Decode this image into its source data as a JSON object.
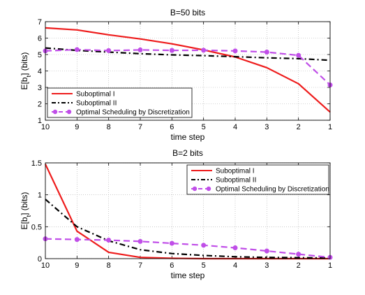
{
  "chart_data": [
    {
      "type": "line",
      "title": "B=50 bits",
      "xlabel": "time step",
      "ylabel": "E[b",
      "ylabel_sub": "t",
      "ylabel_unit": "] (bits)",
      "x": [
        10,
        9,
        8,
        7,
        6,
        5,
        4,
        3,
        2,
        1
      ],
      "x_reversed": true,
      "xlim": [
        1,
        10
      ],
      "ylim": [
        1,
        7
      ],
      "xticks": [
        "10",
        "9",
        "8",
        "7",
        "6",
        "5",
        "4",
        "3",
        "2",
        "1"
      ],
      "yticks": [
        "1",
        "2",
        "3",
        "4",
        "5",
        "6",
        "7"
      ],
      "grid": true,
      "legend_position": "bottom-left",
      "series": [
        {
          "name": "Suboptimal I",
          "color": "#ee1c1c",
          "style": "solid",
          "marker": "none",
          "values": [
            6.62,
            6.5,
            6.2,
            5.95,
            5.65,
            5.28,
            4.85,
            4.2,
            3.22,
            1.5
          ]
        },
        {
          "name": "Suboptimal II",
          "color": "#000000",
          "style": "dashdot",
          "marker": "none",
          "values": [
            5.4,
            5.25,
            5.15,
            5.05,
            4.98,
            4.93,
            4.87,
            4.8,
            4.75,
            4.65
          ]
        },
        {
          "name": "Optimal Scheduling by Discretization",
          "color": "#c04ee8",
          "style": "dashed",
          "marker": "circle",
          "values": [
            5.22,
            5.3,
            5.24,
            5.28,
            5.25,
            5.26,
            5.22,
            5.15,
            4.95,
            3.15
          ]
        }
      ]
    },
    {
      "type": "line",
      "title": "B=2 bits",
      "xlabel": "time step",
      "ylabel": "E[b",
      "ylabel_sub": "t",
      "ylabel_unit": "] (bits)",
      "x": [
        10,
        9,
        8,
        7,
        6,
        5,
        4,
        3,
        2,
        1
      ],
      "x_reversed": true,
      "xlim": [
        1,
        10
      ],
      "ylim": [
        0,
        1.5
      ],
      "xticks": [
        "10",
        "9",
        "8",
        "7",
        "6",
        "5",
        "4",
        "3",
        "2",
        "1"
      ],
      "yticks": [
        "0",
        "0.5",
        "1",
        "1.5"
      ],
      "grid": true,
      "legend_position": "top-right",
      "series": [
        {
          "name": "Suboptimal I",
          "color": "#ee1c1c",
          "style": "solid",
          "marker": "none",
          "values": [
            1.48,
            0.43,
            0.1,
            0.02,
            0.005,
            0.0,
            0.0,
            0.0,
            0.0,
            0.0
          ]
        },
        {
          "name": "Suboptimal II",
          "color": "#000000",
          "style": "dashdot",
          "marker": "none",
          "values": [
            0.93,
            0.5,
            0.28,
            0.14,
            0.08,
            0.05,
            0.03,
            0.02,
            0.015,
            0.01
          ]
        },
        {
          "name": "Optimal Scheduling by Discretization",
          "color": "#c04ee8",
          "style": "dashed",
          "marker": "circle",
          "values": [
            0.31,
            0.3,
            0.29,
            0.27,
            0.24,
            0.21,
            0.17,
            0.12,
            0.07,
            0.02
          ]
        }
      ]
    }
  ]
}
